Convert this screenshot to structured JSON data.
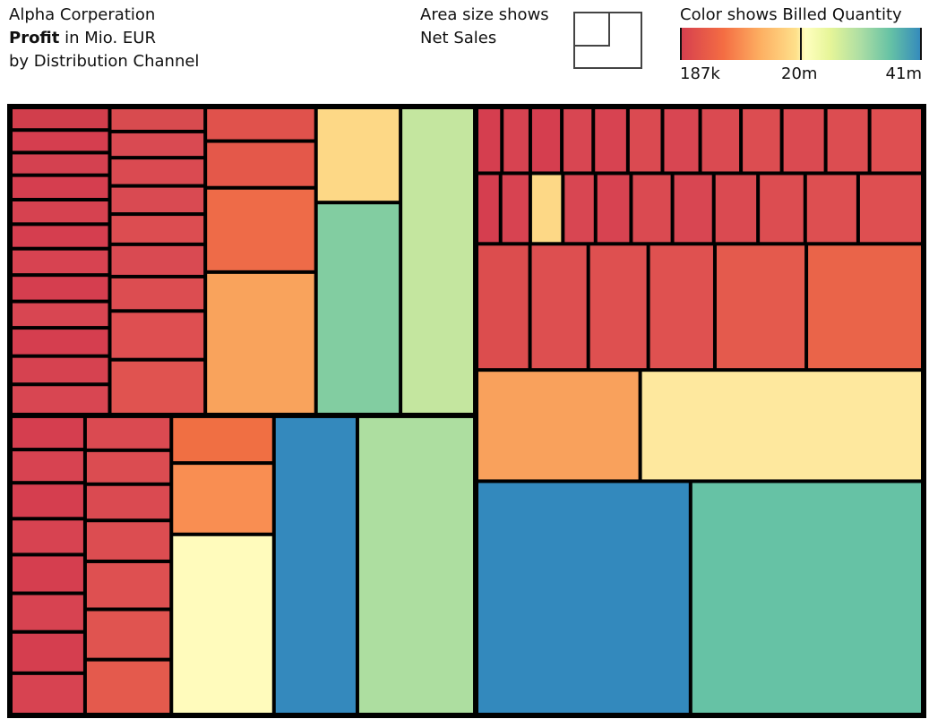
{
  "header": {
    "company": "Alpha Corperation",
    "measure_bold": "Profit",
    "measure_rest": " in Mio. EUR",
    "dimension": "by Distribution Channel"
  },
  "size_legend": {
    "line1": "Area size shows",
    "line2": "Net Sales"
  },
  "color_legend": {
    "title": "Color shows Billed Quantity",
    "min_label": "187k",
    "mid_label": "20m",
    "max_label": "41m",
    "palette": [
      "#d53e4f",
      "#f46d43",
      "#fdae61",
      "#fee08b",
      "#ffffbf",
      "#e6f598",
      "#abdda4",
      "#66c2a5",
      "#3288bd"
    ]
  },
  "chart_data": {
    "type": "treemap",
    "size_measure": "Net Sales",
    "color_measure": "Billed Quantity",
    "color_range": [
      187000,
      41000000
    ],
    "groups": [
      {
        "columns": [
          {
            "tiles": [
              {
                "value": 1.0,
                "color": "#d13e4c"
              },
              {
                "value": 1.0,
                "color": "#d53e4f"
              },
              {
                "value": 1.0,
                "color": "#d44150"
              },
              {
                "value": 1.1,
                "color": "#d53e4f"
              },
              {
                "value": 1.1,
                "color": "#d64250"
              },
              {
                "value": 1.1,
                "color": "#d53e4f"
              },
              {
                "value": 1.2,
                "color": "#d74351"
              },
              {
                "value": 1.2,
                "color": "#d53e4f"
              },
              {
                "value": 1.2,
                "color": "#d84652"
              },
              {
                "value": 1.3,
                "color": "#d53e4f"
              },
              {
                "value": 1.3,
                "color": "#d64250"
              },
              {
                "value": 1.4,
                "color": "#d84652"
              }
            ]
          },
          {
            "tiles": [
              {
                "value": 1.0,
                "color": "#d84b4f"
              },
              {
                "value": 1.1,
                "color": "#d94a52"
              },
              {
                "value": 1.2,
                "color": "#da4a51"
              },
              {
                "value": 1.2,
                "color": "#d94a52"
              },
              {
                "value": 1.3,
                "color": "#dc4d51"
              },
              {
                "value": 1.4,
                "color": "#d94a52"
              },
              {
                "value": 1.5,
                "color": "#dc4d51"
              },
              {
                "value": 2.2,
                "color": "#de4f51"
              },
              {
                "value": 2.5,
                "color": "#e05350"
              }
            ]
          },
          {
            "tiles": [
              {
                "value": 1.6,
                "color": "#e0524c"
              },
              {
                "value": 2.3,
                "color": "#e4584a"
              },
              {
                "value": 4.3,
                "color": "#ee6b48"
              },
              {
                "value": 7.4,
                "color": "#f9a35c"
              }
            ]
          },
          {
            "tiles": [
              {
                "value": 3.6,
                "color": "#fdd886"
              },
              {
                "value": 8.2,
                "color": "#82cda1"
              }
            ]
          },
          {
            "tiles": [
              {
                "value": 10.3,
                "color": "#c4e69f"
              }
            ]
          }
        ]
      },
      {
        "columns": [
          {
            "tiles": [
              {
                "value": 1.1,
                "color": "#d53e4f"
              },
              {
                "value": 1.1,
                "color": "#d74351"
              },
              {
                "value": 1.2,
                "color": "#d53e4f"
              },
              {
                "value": 1.2,
                "color": "#d74351"
              },
              {
                "value": 1.3,
                "color": "#d53e4f"
              },
              {
                "value": 1.3,
                "color": "#d74351"
              },
              {
                "value": 1.4,
                "color": "#d53e4f"
              },
              {
                "value": 1.4,
                "color": "#d74351"
              }
            ]
          },
          {
            "tiles": [
              {
                "value": 1.3,
                "color": "#da4a51"
              },
              {
                "value": 1.3,
                "color": "#db4c51"
              },
              {
                "value": 1.4,
                "color": "#da4a51"
              },
              {
                "value": 1.6,
                "color": "#dc4d51"
              },
              {
                "value": 1.9,
                "color": "#de5051"
              },
              {
                "value": 2.0,
                "color": "#e05450"
              },
              {
                "value": 2.2,
                "color": "#e45a4d"
              }
            ]
          },
          {
            "tiles": [
              {
                "value": 2.1,
                "color": "#f06f43"
              },
              {
                "value": 3.3,
                "color": "#f98e52"
              },
              {
                "value": 8.6,
                "color": "#fffbbc"
              }
            ]
          },
          {
            "tiles": [
              {
                "value": 11.3,
                "color": "#3489bd"
              }
            ]
          },
          {
            "tiles": [
              {
                "value": 16.1,
                "color": "#addea0"
              }
            ]
          }
        ]
      },
      {
        "rows": [
          {
            "tiles": [
              {
                "value": 0.7,
                "color": "#d53e4f"
              },
              {
                "value": 0.8,
                "color": "#d74351"
              },
              {
                "value": 0.9,
                "color": "#d53e4f"
              },
              {
                "value": 0.9,
                "color": "#d84652"
              },
              {
                "value": 1.0,
                "color": "#d74351"
              },
              {
                "value": 1.0,
                "color": "#da4a51"
              },
              {
                "value": 1.1,
                "color": "#d84652"
              },
              {
                "value": 1.2,
                "color": "#da4a51"
              },
              {
                "value": 1.2,
                "color": "#dc4d51"
              },
              {
                "value": 1.3,
                "color": "#da4a51"
              },
              {
                "value": 1.3,
                "color": "#dc4d51"
              },
              {
                "value": 1.6,
                "color": "#de4f51"
              }
            ]
          },
          {
            "tiles": [
              {
                "value": 0.7,
                "color": "#d53e4f"
              },
              {
                "value": 0.9,
                "color": "#d74351"
              },
              {
                "value": 1.0,
                "color": "#fdd886"
              },
              {
                "value": 1.0,
                "color": "#d84652"
              },
              {
                "value": 1.1,
                "color": "#d74351"
              },
              {
                "value": 1.3,
                "color": "#da4a51"
              },
              {
                "value": 1.3,
                "color": "#d84652"
              },
              {
                "value": 1.4,
                "color": "#da4a51"
              },
              {
                "value": 1.5,
                "color": "#dc4d51"
              },
              {
                "value": 1.7,
                "color": "#dd4f51"
              },
              {
                "value": 2.1,
                "color": "#de4f51"
              }
            ]
          },
          {
            "tiles": [
              {
                "value": 3.0,
                "color": "#dc4d4e"
              },
              {
                "value": 3.3,
                "color": "#dd4f50"
              },
              {
                "value": 3.4,
                "color": "#de5050"
              },
              {
                "value": 3.8,
                "color": "#df5150"
              },
              {
                "value": 5.3,
                "color": "#e45a4d"
              },
              {
                "value": 6.8,
                "color": "#ea6449"
              }
            ]
          },
          {
            "tiles": [
              {
                "value": 8.2,
                "color": "#f9a15c"
              },
              {
                "value": 14.3,
                "color": "#fee89e"
              }
            ]
          },
          {
            "tiles": [
              {
                "value": 23.0,
                "color": "#3389bd"
              },
              {
                "value": 25.0,
                "color": "#66c2a5"
              }
            ]
          }
        ]
      }
    ]
  }
}
